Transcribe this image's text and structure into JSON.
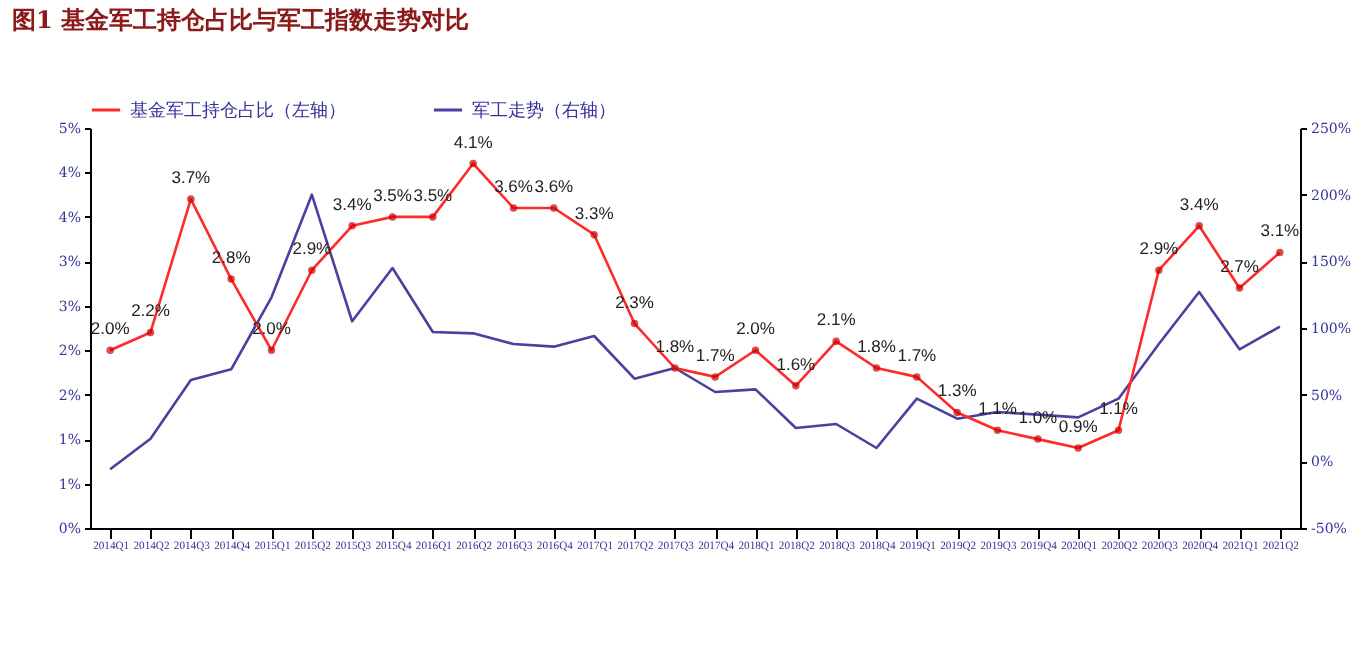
{
  "chart_data": {
    "type": "line",
    "title": "图1 基金军工持仓占比与军工指数走势对比",
    "categories": [
      "2014Q1",
      "2014Q2",
      "2014Q3",
      "2014Q4",
      "2015Q1",
      "2015Q2",
      "2015Q3",
      "2015Q4",
      "2016Q1",
      "2016Q2",
      "2016Q3",
      "2016Q4",
      "2017Q1",
      "2017Q2",
      "2017Q3",
      "2017Q4",
      "2018Q1",
      "2018Q2",
      "2018Q3",
      "2018Q4",
      "2019Q1",
      "2019Q2",
      "2019Q3",
      "2019Q4",
      "2020Q1",
      "2020Q2",
      "2020Q3",
      "2020Q4",
      "2021Q1",
      "2021Q2"
    ],
    "series": [
      {
        "name": "基金军工持仓占比（左轴）",
        "color": "#ff2a2a",
        "marker": "circle",
        "values": [
          2.0,
          2.2,
          3.7,
          2.8,
          2.0,
          2.9,
          3.4,
          3.5,
          3.5,
          4.1,
          3.6,
          3.6,
          3.3,
          2.3,
          1.8,
          1.7,
          2.0,
          1.6,
          2.1,
          1.8,
          1.7,
          1.3,
          1.1,
          1.0,
          0.9,
          1.1,
          2.9,
          3.4,
          2.7,
          3.1
        ],
        "value_labels": [
          "2.0%",
          "2.2%",
          "3.7%",
          "2.8%",
          "2.0%",
          "2.9%",
          "3.4%",
          "3.5%",
          "3.5%",
          "4.1%",
          "3.6%",
          "3.6%",
          "3.3%",
          "2.3%",
          "1.8%",
          "1.7%",
          "2.0%",
          "1.6%",
          "2.1%",
          "1.8%",
          "1.7%",
          "1.3%",
          "1.1%",
          "1.0%",
          "0.9%",
          "1.1%",
          "2.9%",
          "3.4%",
          "2.7%",
          "3.1%"
        ]
      },
      {
        "name": "军工走势（右轴）",
        "color": "#4b3fa0",
        "axis": "y2",
        "marker": "none",
        "values": [
          -6,
          17,
          61,
          69,
          123,
          200,
          105,
          145,
          97,
          96,
          88,
          86,
          94,
          62,
          70,
          52,
          54,
          25,
          28,
          10,
          47,
          32,
          37,
          35,
          33,
          47,
          88,
          127,
          84,
          101
        ]
      }
    ],
    "ylim": [
      0,
      4.5
    ],
    "yticks": [
      {
        "value": 0,
        "label": "0%"
      },
      {
        "value": 0.5,
        "label": "1%"
      },
      {
        "value": 1,
        "label": "1%"
      },
      {
        "value": 1.5,
        "label": "2%"
      },
      {
        "value": 2,
        "label": "2%"
      },
      {
        "value": 2.5,
        "label": "3%"
      },
      {
        "value": 3,
        "label": "3%"
      },
      {
        "value": 3.5,
        "label": "4%"
      },
      {
        "value": 4,
        "label": "4%"
      },
      {
        "value": 4.5,
        "label": "5%"
      }
    ],
    "y2lim": [
      -50,
      250
    ],
    "y2ticks": [
      {
        "value": -50,
        "label": "-50%"
      },
      {
        "value": 0,
        "label": "0%"
      },
      {
        "value": 50,
        "label": "50%"
      },
      {
        "value": 100,
        "label": "100%"
      },
      {
        "value": 150,
        "label": "150%"
      },
      {
        "value": 200,
        "label": "200%"
      },
      {
        "value": 250,
        "label": "250%"
      }
    ],
    "grid": false,
    "legend": "top"
  }
}
